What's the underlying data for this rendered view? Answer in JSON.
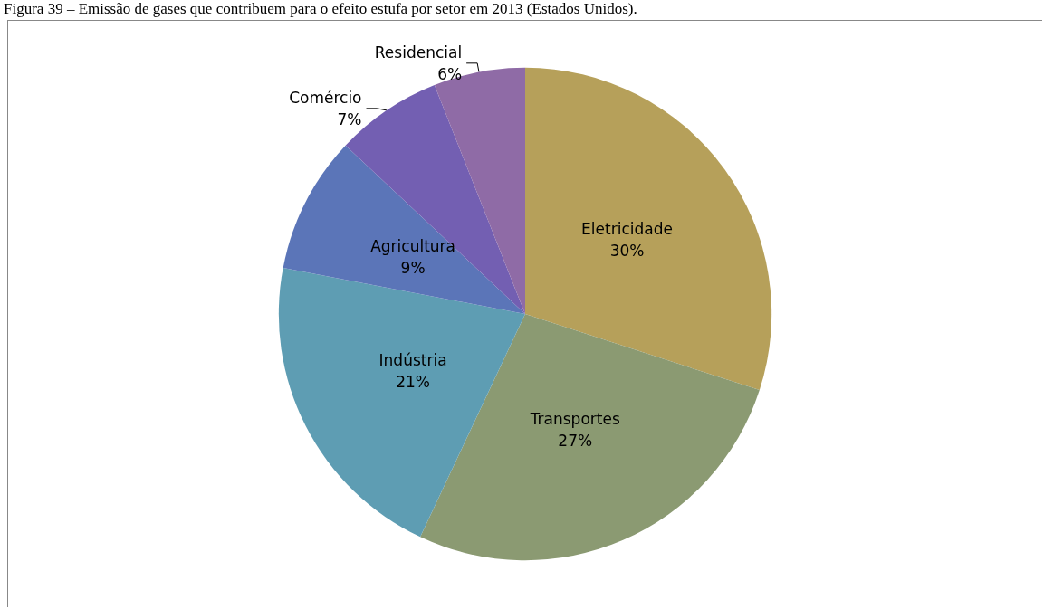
{
  "chart_data": {
    "type": "pie",
    "title": "Figura 39 – Emissão de gases que contribuem para o efeito estufa por setor em 2013 (Estados Unidos).",
    "categories": [
      "Eletricidade",
      "Transportes",
      "Indústria",
      "Agricultura",
      "Comércio",
      "Residencial"
    ],
    "values": [
      30,
      27,
      21,
      9,
      7,
      6
    ],
    "colors": [
      "#b6a05a",
      "#8b9a72",
      "#5e9db3",
      "#5b75b8",
      "#735fb2",
      "#8f6ba6"
    ],
    "value_labels": [
      "30%",
      "27%",
      "21%",
      "9%",
      "7%",
      "6%"
    ],
    "legend": false
  }
}
